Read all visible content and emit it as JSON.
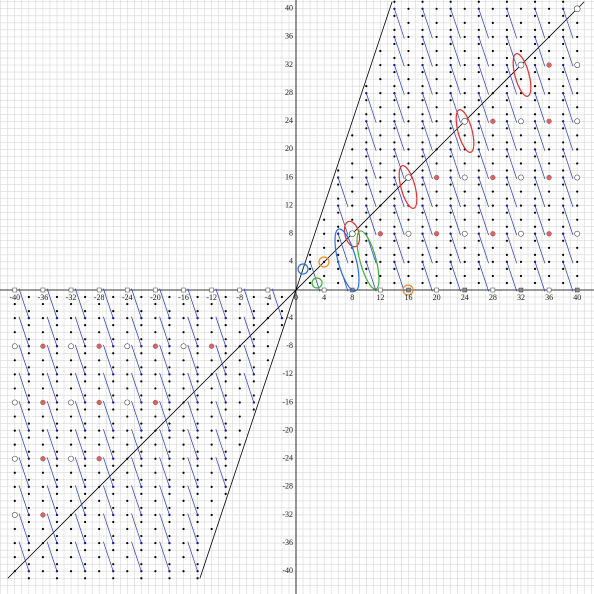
{
  "x_ticks": [
    -40,
    -36,
    -32,
    -28,
    -24,
    -20,
    -16,
    -12,
    -8,
    -4,
    0,
    4,
    8,
    12,
    16,
    20,
    24,
    28,
    32,
    36,
    40
  ],
  "y_ticks": [
    40,
    36,
    32,
    28,
    24,
    20,
    16,
    12,
    8,
    4,
    -4,
    -8,
    -12,
    -16,
    -20,
    -24,
    -28,
    -32,
    -36,
    -40
  ]
}
